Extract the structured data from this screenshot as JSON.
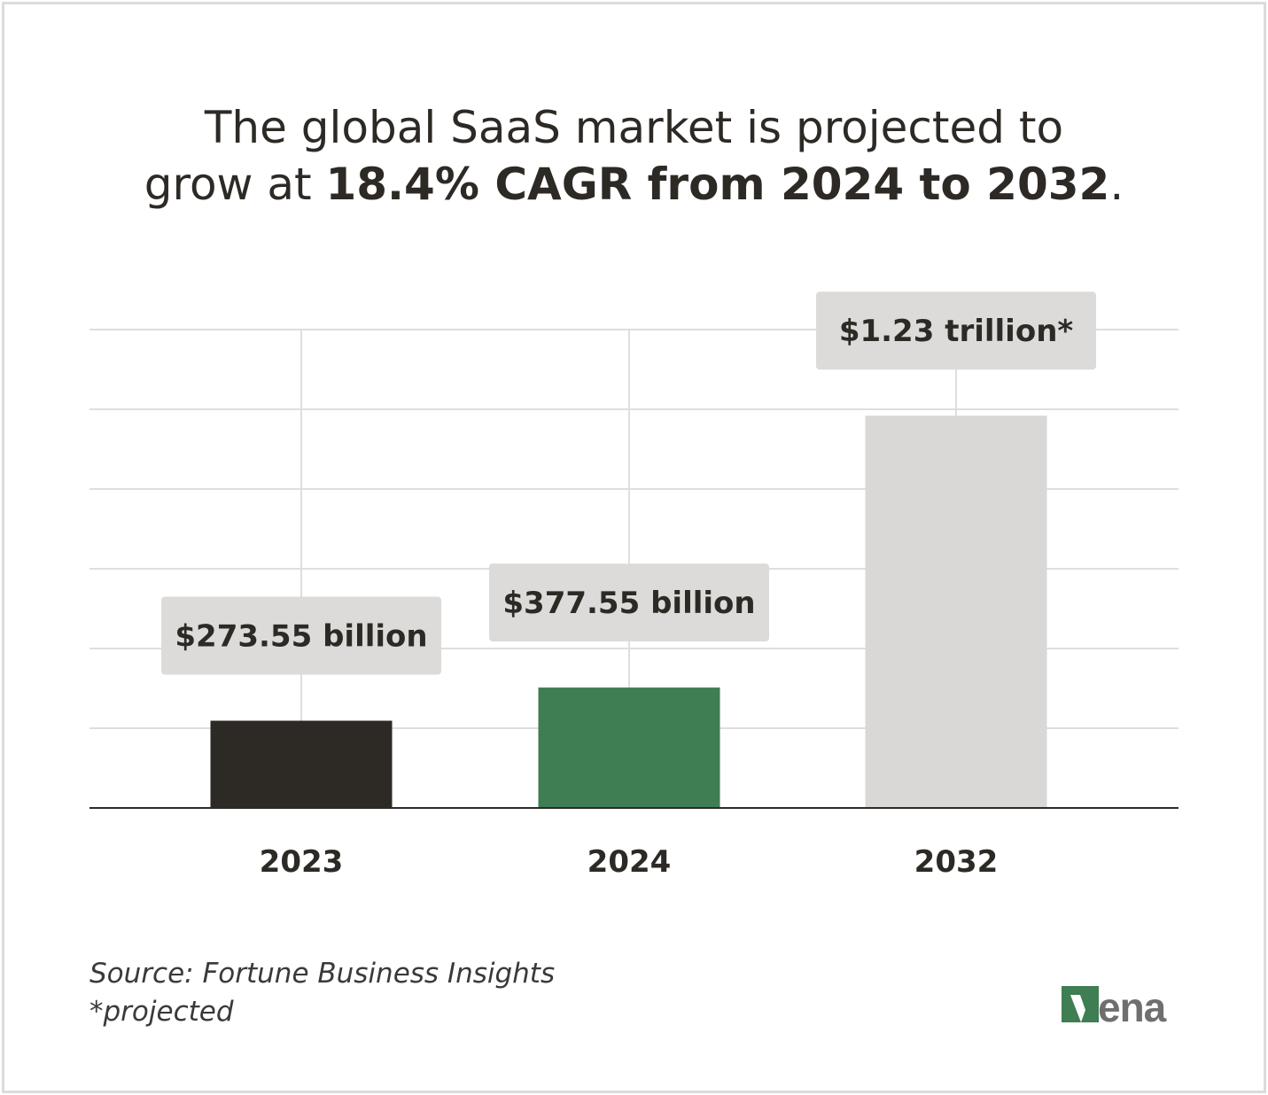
{
  "title": {
    "line1": "The global SaaS market is projected to",
    "line2_prefix": "grow at ",
    "line2_bold": "18.4% CAGR from 2024 to 2032",
    "line2_suffix": "."
  },
  "chart_data": {
    "type": "bar",
    "title": "The global SaaS market is projected to grow at 18.4% CAGR from 2024 to 2032.",
    "categories": [
      "2023",
      "2024",
      "2032"
    ],
    "values": [
      273.55,
      377.55,
      1230
    ],
    "units": "billion USD",
    "data_labels": [
      "$273.55 billion",
      "$377.55 billion",
      "$1.23 trillion*"
    ],
    "colors": [
      "#2d2a26",
      "#3f7d52",
      "#d9d8d6"
    ],
    "xlabel": "",
    "ylabel": "",
    "ylim": [
      0,
      1500
    ],
    "grid": true
  },
  "footer": {
    "source": "Source: Fortune Business Insights",
    "note": "*projected"
  },
  "logo": {
    "text": "vena",
    "color": "#3f7d52"
  }
}
